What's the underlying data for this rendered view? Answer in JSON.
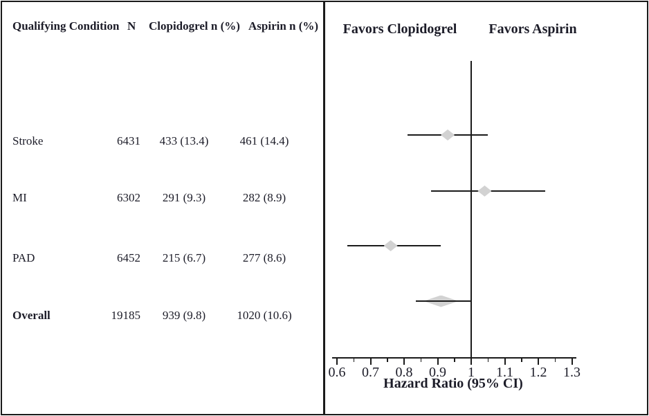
{
  "table": {
    "headers": [
      "Qualifying Condition",
      "N",
      "Clopidogrel n (%)",
      "Aspirin n (%)"
    ],
    "rows": [
      {
        "condition": "Stroke",
        "n": "6431",
        "clopidogrel": "433 (13.4)",
        "aspirin": "461 (14.4)"
      },
      {
        "condition": "MI",
        "n": "6302",
        "clopidogrel": "291 (9.3)",
        "aspirin": "282 (8.9)"
      },
      {
        "condition": "PAD",
        "n": "6452",
        "clopidogrel": "215 (6.7)",
        "aspirin": "277 (8.6)"
      },
      {
        "condition": "Overall",
        "n": "19185",
        "clopidogrel": "939 (9.8)",
        "aspirin": "1020 (10.6)"
      }
    ]
  },
  "chart_data": {
    "type": "scatter",
    "subtype": "forest-plot",
    "title_left": "Favors Clopidogrel",
    "title_right": "Favors Aspirin",
    "xlabel": "Hazard Ratio (95% CI)",
    "axis": {
      "min": 0.6,
      "max": 1.35,
      "reference_line": 1.0,
      "major_ticks": [
        0.6,
        0.7,
        0.8,
        0.9,
        1,
        1.1,
        1.2,
        1.3
      ],
      "tick_labels": [
        "0.6",
        "0.7",
        "0.8",
        "0.9",
        "1",
        "1.1",
        "1.2",
        "1.3"
      ],
      "minor_ticks": [
        0.65,
        0.75,
        0.85,
        0.95,
        1.05,
        1.15,
        1.25
      ],
      "scale": "linear",
      "grid": false
    },
    "series": [
      {
        "label": "Stroke",
        "hr": 0.93,
        "ci_low": 0.81,
        "ci_high": 1.05,
        "marker": "diamond"
      },
      {
        "label": "MI",
        "hr": 1.04,
        "ci_low": 0.88,
        "ci_high": 1.22,
        "marker": "diamond"
      },
      {
        "label": "PAD",
        "hr": 0.76,
        "ci_low": 0.63,
        "ci_high": 0.91,
        "marker": "diamond"
      },
      {
        "label": "Overall",
        "hr": 0.91,
        "ci_low": 0.835,
        "ci_high": 0.997,
        "marker": "summary-diamond"
      }
    ]
  },
  "colors": {
    "text": "#1c1c28",
    "line": "#1a1a1a",
    "diamond_fill": "#d2d2d2",
    "background": "#ffffff"
  }
}
